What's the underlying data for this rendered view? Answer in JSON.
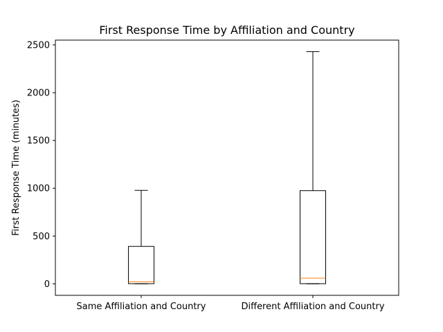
{
  "chart_data": {
    "type": "box",
    "title": "First Response Time by Affiliation and Country",
    "xlabel": "",
    "ylabel": "First Response Time (minutes)",
    "ylim": [
      -120,
      2550
    ],
    "yticks": [
      0,
      500,
      1000,
      1500,
      2000,
      2500
    ],
    "categories": [
      "Same Affiliation and Country",
      "Different Affiliation and Country"
    ],
    "boxes": [
      {
        "category": "Same Affiliation and Country",
        "whisker_low": 0,
        "q1": 2,
        "median": 22,
        "q3": 392,
        "whisker_high": 978
      },
      {
        "category": "Different Affiliation and Country",
        "whisker_low": 0,
        "q1": 2,
        "median": 60,
        "q3": 975,
        "whisker_high": 2430
      }
    ],
    "colors": {
      "box_edge": "#000000",
      "median": "#ff7f0e",
      "axes": "#000000"
    },
    "grid": false,
    "legend": "none"
  }
}
